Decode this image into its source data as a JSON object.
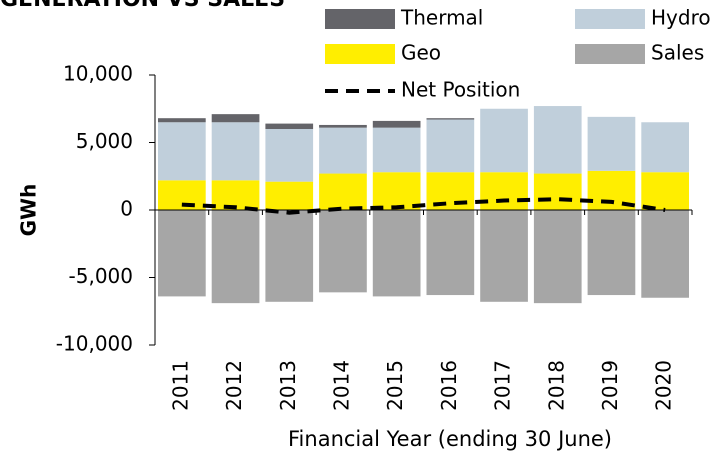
{
  "chart_data": {
    "type": "bar",
    "title": "GENERATION VS SALES",
    "x_label": "Financial Year (ending 30 June)",
    "y_label": "GWh",
    "categories": [
      "2011",
      "2012",
      "2013",
      "2014",
      "2015",
      "2016",
      "2017",
      "2018",
      "2019",
      "2020"
    ],
    "series": [
      {
        "name": "Geo",
        "color": "#ffee00",
        "type": "bar",
        "values": [
          2200,
          2200,
          2100,
          2700,
          2800,
          2800,
          2800,
          2700,
          2900,
          2800
        ]
      },
      {
        "name": "Hydro",
        "color": "#c0cfdb",
        "type": "bar",
        "values": [
          4300,
          4300,
          3900,
          3400,
          3300,
          3900,
          4700,
          5000,
          4000,
          3700
        ]
      },
      {
        "name": "Thermal",
        "color": "#646469",
        "type": "bar",
        "values": [
          300,
          600,
          400,
          200,
          500,
          100,
          0,
          0,
          0,
          0
        ]
      },
      {
        "name": "Sales",
        "color": "#a6a6a6",
        "type": "bar",
        "values": [
          -6400,
          -6900,
          -6800,
          -6100,
          -6400,
          -6300,
          -6800,
          -6900,
          -6300,
          -6500
        ]
      },
      {
        "name": "Net Position",
        "color": "#000000",
        "type": "line",
        "dashed": true,
        "values": [
          400,
          200,
          -200,
          100,
          200,
          500,
          700,
          800,
          600,
          0
        ]
      }
    ],
    "ylim": [
      -10000,
      10000
    ],
    "yticks": [
      {
        "value": -10000,
        "label": "-10,000"
      },
      {
        "value": -5000,
        "label": "-5,000"
      },
      0,
      {
        "value": 5000,
        "label": "5,000"
      },
      {
        "value": 10000,
        "label": "10,000"
      }
    ],
    "grid": false
  }
}
